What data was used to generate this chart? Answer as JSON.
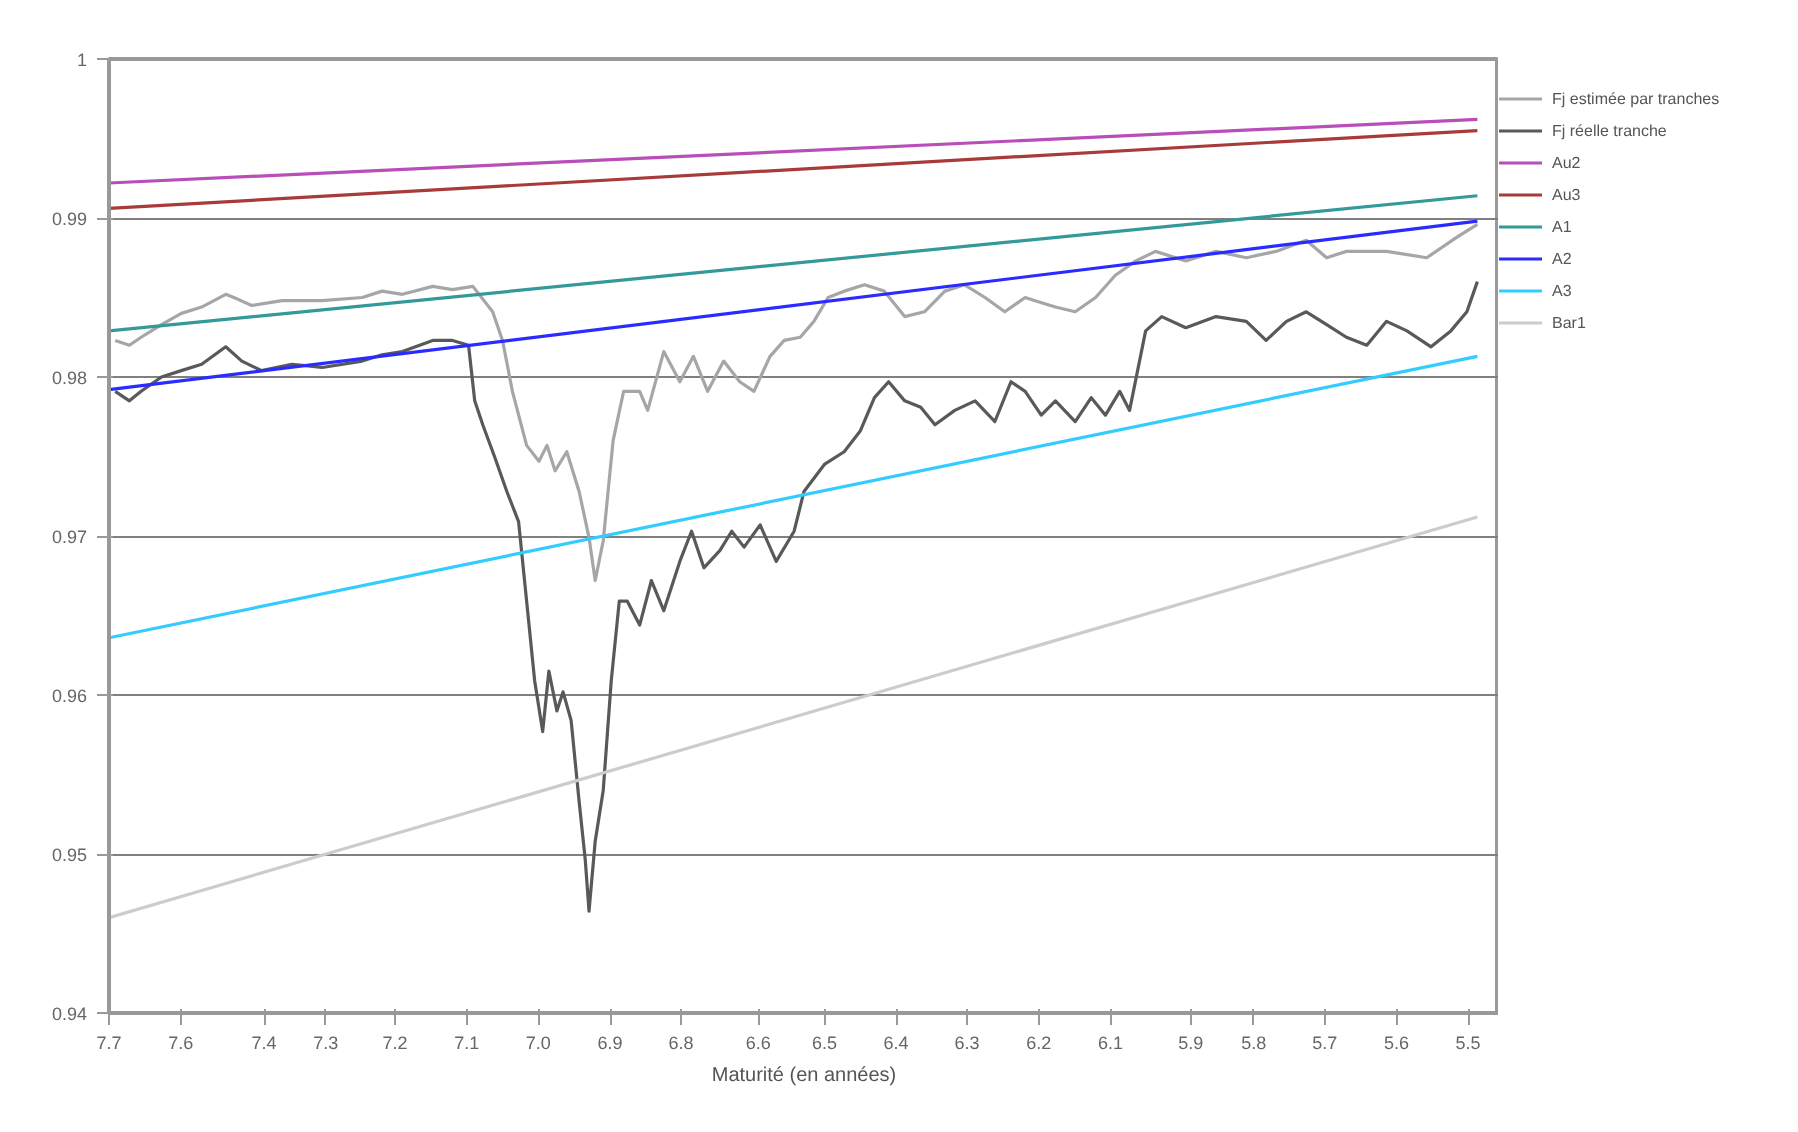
{
  "chart_data": {
    "type": "line",
    "xlabel": "Maturité (en années)",
    "xlim": [
      7.7,
      5.45
    ],
    "ylim": [
      0.94,
      1
    ],
    "xticks": [
      {
        "value": 7.7,
        "label": "7.7"
      },
      {
        "value": 7.584,
        "label": "7.6"
      },
      {
        "value": 7.449,
        "label": "7.4"
      },
      {
        "value": 7.349,
        "label": "7.3"
      },
      {
        "value": 7.237,
        "label": "7.2"
      },
      {
        "value": 7.121,
        "label": "7.1"
      },
      {
        "value": 7.005,
        "label": "7.0"
      },
      {
        "value": 6.889,
        "label": "6.9"
      },
      {
        "value": 6.774,
        "label": "6.8"
      },
      {
        "value": 6.649,
        "label": "6.6"
      },
      {
        "value": 6.542,
        "label": "6.5"
      },
      {
        "value": 6.426,
        "label": "6.4"
      },
      {
        "value": 6.311,
        "label": "6.3"
      },
      {
        "value": 6.195,
        "label": "6.2"
      },
      {
        "value": 6.079,
        "label": "6.1"
      },
      {
        "value": 5.949,
        "label": "5.9"
      },
      {
        "value": 5.847,
        "label": "5.8"
      },
      {
        "value": 5.732,
        "label": "5.7"
      },
      {
        "value": 5.616,
        "label": "5.6"
      },
      {
        "value": 5.5,
        "label": "5.5"
      }
    ],
    "yticks": [
      0.94,
      0.95,
      0.96,
      0.97,
      0.98,
      0.99,
      1
    ],
    "grid": "y",
    "legend": "right",
    "marker": "none",
    "line_style": "solid",
    "series": [
      {
        "name": "Fj estimée par tranches",
        "color": "#a6a6a6",
        "x": [
          7.69,
          7.667,
          7.648,
          7.615,
          7.583,
          7.55,
          7.511,
          7.492,
          7.469,
          7.42,
          7.355,
          7.29,
          7.258,
          7.225,
          7.176,
          7.144,
          7.111,
          7.079,
          7.063,
          7.047,
          7.024,
          7.004,
          6.991,
          6.978,
          6.959,
          6.939,
          6.923,
          6.913,
          6.9,
          6.884,
          6.867,
          6.841,
          6.828,
          6.802,
          6.776,
          6.754,
          6.731,
          6.705,
          6.679,
          6.656,
          6.63,
          6.607,
          6.581,
          6.559,
          6.536,
          6.51,
          6.477,
          6.445,
          6.412,
          6.38,
          6.347,
          6.315,
          6.282,
          6.25,
          6.217,
          6.201,
          6.168,
          6.136,
          6.103,
          6.071,
          6.038,
          6.006,
          5.957,
          5.908,
          5.859,
          5.811,
          5.762,
          5.729,
          5.697,
          5.632,
          5.567,
          5.518,
          5.485
        ],
        "values": [
          0.9823,
          0.982,
          0.9825,
          0.9833,
          0.984,
          0.9844,
          0.9852,
          0.9849,
          0.9845,
          0.9848,
          0.9848,
          0.985,
          0.9854,
          0.9852,
          0.9857,
          0.9855,
          0.9857,
          0.9841,
          0.9823,
          0.9791,
          0.9757,
          0.9747,
          0.9757,
          0.9741,
          0.9753,
          0.9728,
          0.9699,
          0.9672,
          0.9697,
          0.976,
          0.9791,
          0.9791,
          0.9779,
          0.9816,
          0.9797,
          0.9813,
          0.9791,
          0.981,
          0.9797,
          0.9791,
          0.9813,
          0.9823,
          0.9825,
          0.9835,
          0.985,
          0.9854,
          0.9858,
          0.9854,
          0.9838,
          0.9841,
          0.9854,
          0.9858,
          0.985,
          0.9841,
          0.985,
          0.9848,
          0.9844,
          0.9841,
          0.985,
          0.9864,
          0.9873,
          0.9879,
          0.9873,
          0.9879,
          0.9875,
          0.9879,
          0.9886,
          0.9875,
          0.9879,
          0.9879,
          0.9875,
          0.9888,
          0.9896
        ]
      },
      {
        "name": "Fj réelle tranche",
        "color": "#595959",
        "x": [
          7.69,
          7.667,
          7.648,
          7.615,
          7.583,
          7.55,
          7.511,
          7.485,
          7.453,
          7.404,
          7.355,
          7.29,
          7.258,
          7.225,
          7.176,
          7.144,
          7.118,
          7.108,
          7.095,
          7.076,
          7.056,
          7.037,
          7.024,
          7.011,
          6.998,
          6.988,
          6.975,
          6.965,
          6.952,
          6.939,
          6.929,
          6.923,
          6.913,
          6.9,
          6.887,
          6.874,
          6.861,
          6.841,
          6.822,
          6.802,
          6.776,
          6.757,
          6.737,
          6.711,
          6.692,
          6.672,
          6.646,
          6.62,
          6.591,
          6.575,
          6.542,
          6.51,
          6.484,
          6.461,
          6.438,
          6.412,
          6.386,
          6.363,
          6.331,
          6.298,
          6.266,
          6.24,
          6.217,
          6.191,
          6.168,
          6.136,
          6.11,
          6.087,
          6.064,
          6.048,
          6.022,
          5.996,
          5.957,
          5.908,
          5.859,
          5.827,
          5.794,
          5.762,
          5.729,
          5.697,
          5.664,
          5.632,
          5.599,
          5.56,
          5.528,
          5.502,
          5.485
        ],
        "values": [
          0.9791,
          0.9785,
          0.9791,
          0.98,
          0.9804,
          0.9808,
          0.9819,
          0.981,
          0.9804,
          0.9808,
          0.9806,
          0.981,
          0.9814,
          0.9816,
          0.9823,
          0.9823,
          0.982,
          0.9785,
          0.977,
          0.975,
          0.9728,
          0.9709,
          0.9659,
          0.9609,
          0.9577,
          0.9615,
          0.959,
          0.9602,
          0.9584,
          0.9533,
          0.9496,
          0.9464,
          0.9508,
          0.954,
          0.9609,
          0.9659,
          0.9659,
          0.9644,
          0.9672,
          0.9653,
          0.9684,
          0.9703,
          0.968,
          0.9691,
          0.9703,
          0.9693,
          0.9707,
          0.9684,
          0.9703,
          0.9728,
          0.9745,
          0.9753,
          0.9766,
          0.9787,
          0.9797,
          0.9785,
          0.9781,
          0.977,
          0.9779,
          0.9785,
          0.9772,
          0.9797,
          0.9791,
          0.9776,
          0.9785,
          0.9772,
          0.9787,
          0.9776,
          0.9791,
          0.9779,
          0.9829,
          0.9838,
          0.9831,
          0.9838,
          0.9835,
          0.9823,
          0.9835,
          0.9841,
          0.9833,
          0.9825,
          0.982,
          0.9835,
          0.9829,
          0.9819,
          0.9829,
          0.9841,
          0.986
        ]
      },
      {
        "name": "Au2",
        "color": "#b84fb8",
        "x": [
          7.7,
          5.485
        ],
        "values": [
          0.9922,
          0.9962
        ]
      },
      {
        "name": "Au3",
        "color": "#a83a3a",
        "x": [
          7.7,
          5.485
        ],
        "values": [
          0.9906,
          0.9955
        ]
      },
      {
        "name": "A1",
        "color": "#339999",
        "x": [
          7.7,
          5.485
        ],
        "values": [
          0.9829,
          0.9914
        ]
      },
      {
        "name": "A2",
        "color": "#2b2bff",
        "x": [
          7.7,
          5.485
        ],
        "values": [
          0.9792,
          0.9898
        ]
      },
      {
        "name": "A3",
        "color": "#33ccff",
        "x": [
          7.7,
          5.485
        ],
        "values": [
          0.9636,
          0.9813
        ]
      },
      {
        "name": "Bar1",
        "color": "#cccccc",
        "x": [
          7.7,
          5.485
        ],
        "values": [
          0.946,
          0.9712
        ]
      }
    ]
  }
}
